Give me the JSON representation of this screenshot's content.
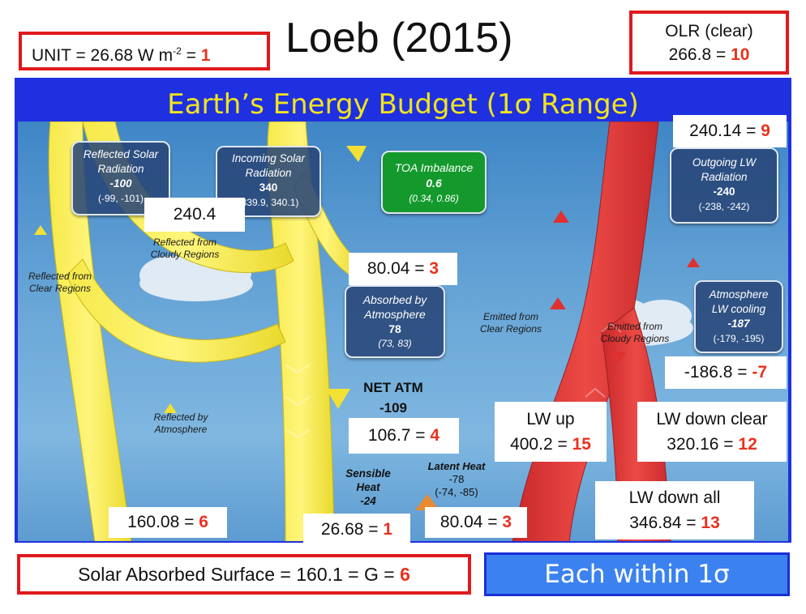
{
  "header": {
    "title": "Loeb (2015)",
    "unit_prefix": "UNIT = 26.68 W m",
    "unit_exp": "-2",
    "unit_eq": " = ",
    "unit_val": "1",
    "olr_label": "OLR (clear)",
    "olr_value": "266.8 = ",
    "olr_red": "10"
  },
  "diagram": {
    "title": "Earth’s Energy Budget (1σ Range)",
    "boxes": {
      "reflected_solar": {
        "l1": "Reflected Solar",
        "l2": "Radiation",
        "v": "-100",
        "r": "(-99, -101)"
      },
      "incoming_solar": {
        "l1": "Incoming Solar",
        "l2": "Radiation",
        "v": "340",
        "r": "(339.9, 340.1)"
      },
      "toa": {
        "l1": "TOA Imbalance",
        "v": "0.6",
        "r": "(0.34, 0.86)"
      },
      "outgoing_lw": {
        "l1": "Outgoing LW",
        "l2": "Radiation",
        "v": "-240",
        "r": "(-238, -242)"
      },
      "absorbed_atm": {
        "l1": "Absorbed by",
        "l2": "Atmosphere",
        "v": "78",
        "r": "(73, 83)"
      },
      "atm_lw": {
        "l1": "Atmosphere",
        "l2": "LW cooling",
        "v": "-187",
        "r": "(-179, -195)"
      }
    },
    "labels": {
      "refl_cloudy_1": "Reflected from",
      "refl_cloudy_2": "Cloudy Regions",
      "refl_clear_1": "Reflected from",
      "refl_clear_2": "Clear Regions",
      "refl_atm_1": "Reflected by",
      "refl_atm_2": "Atmosphere",
      "em_clear_1": "Emitted from",
      "em_clear_2": "Clear Regions",
      "em_cloudy_1": "Emitted from",
      "em_cloudy_2": "Cloudy Regions",
      "net_atm_1": "NET ATM",
      "net_atm_2": "-109",
      "sens_1": "Sensible",
      "sens_2": "Heat",
      "sens_3": "-24",
      "lat_1": "Latent Heat",
      "lat_2": "-78",
      "lat_3": "(-74, -85)"
    },
    "overlays": {
      "refl_240": "240.4",
      "olr_240": "240.14 = ",
      "olr_240_red": "9",
      "abs_80": "80.04 = ",
      "abs_80_red": "3",
      "lwcool": "-186.8 = ",
      "lwcool_red": "-7",
      "net_106": "106.7 = ",
      "net_106_red": "4",
      "lwup_1": "LW up",
      "lwup_2": "400.2 = ",
      "lwup_red": "15",
      "lwdc_1": "LW down clear",
      "lwdc_2": "320.16 = ",
      "lwdc_red": "12",
      "lwda_1": "LW down all",
      "lwda_2": "346.84 = ",
      "lwda_red": "13",
      "sfc_160": "160.08 = ",
      "sfc_160_red": "6",
      "sens_26": "26.68 = ",
      "sens_26_red": "1",
      "lat_80": "80.04 = ",
      "lat_80_red": "3"
    }
  },
  "footer": {
    "solar_text": "Solar Absorbed Surface = 160.1 = G = ",
    "solar_red": "6",
    "each_text": "Each within 1σ"
  },
  "colors": {
    "frame_blue": "#1f30e0",
    "title_yellow": "#f1e41d",
    "red_border": "#e0191c",
    "red_text": "#e8321e",
    "each_bg": "#3b82f0",
    "toa_green": "#149a2c"
  }
}
